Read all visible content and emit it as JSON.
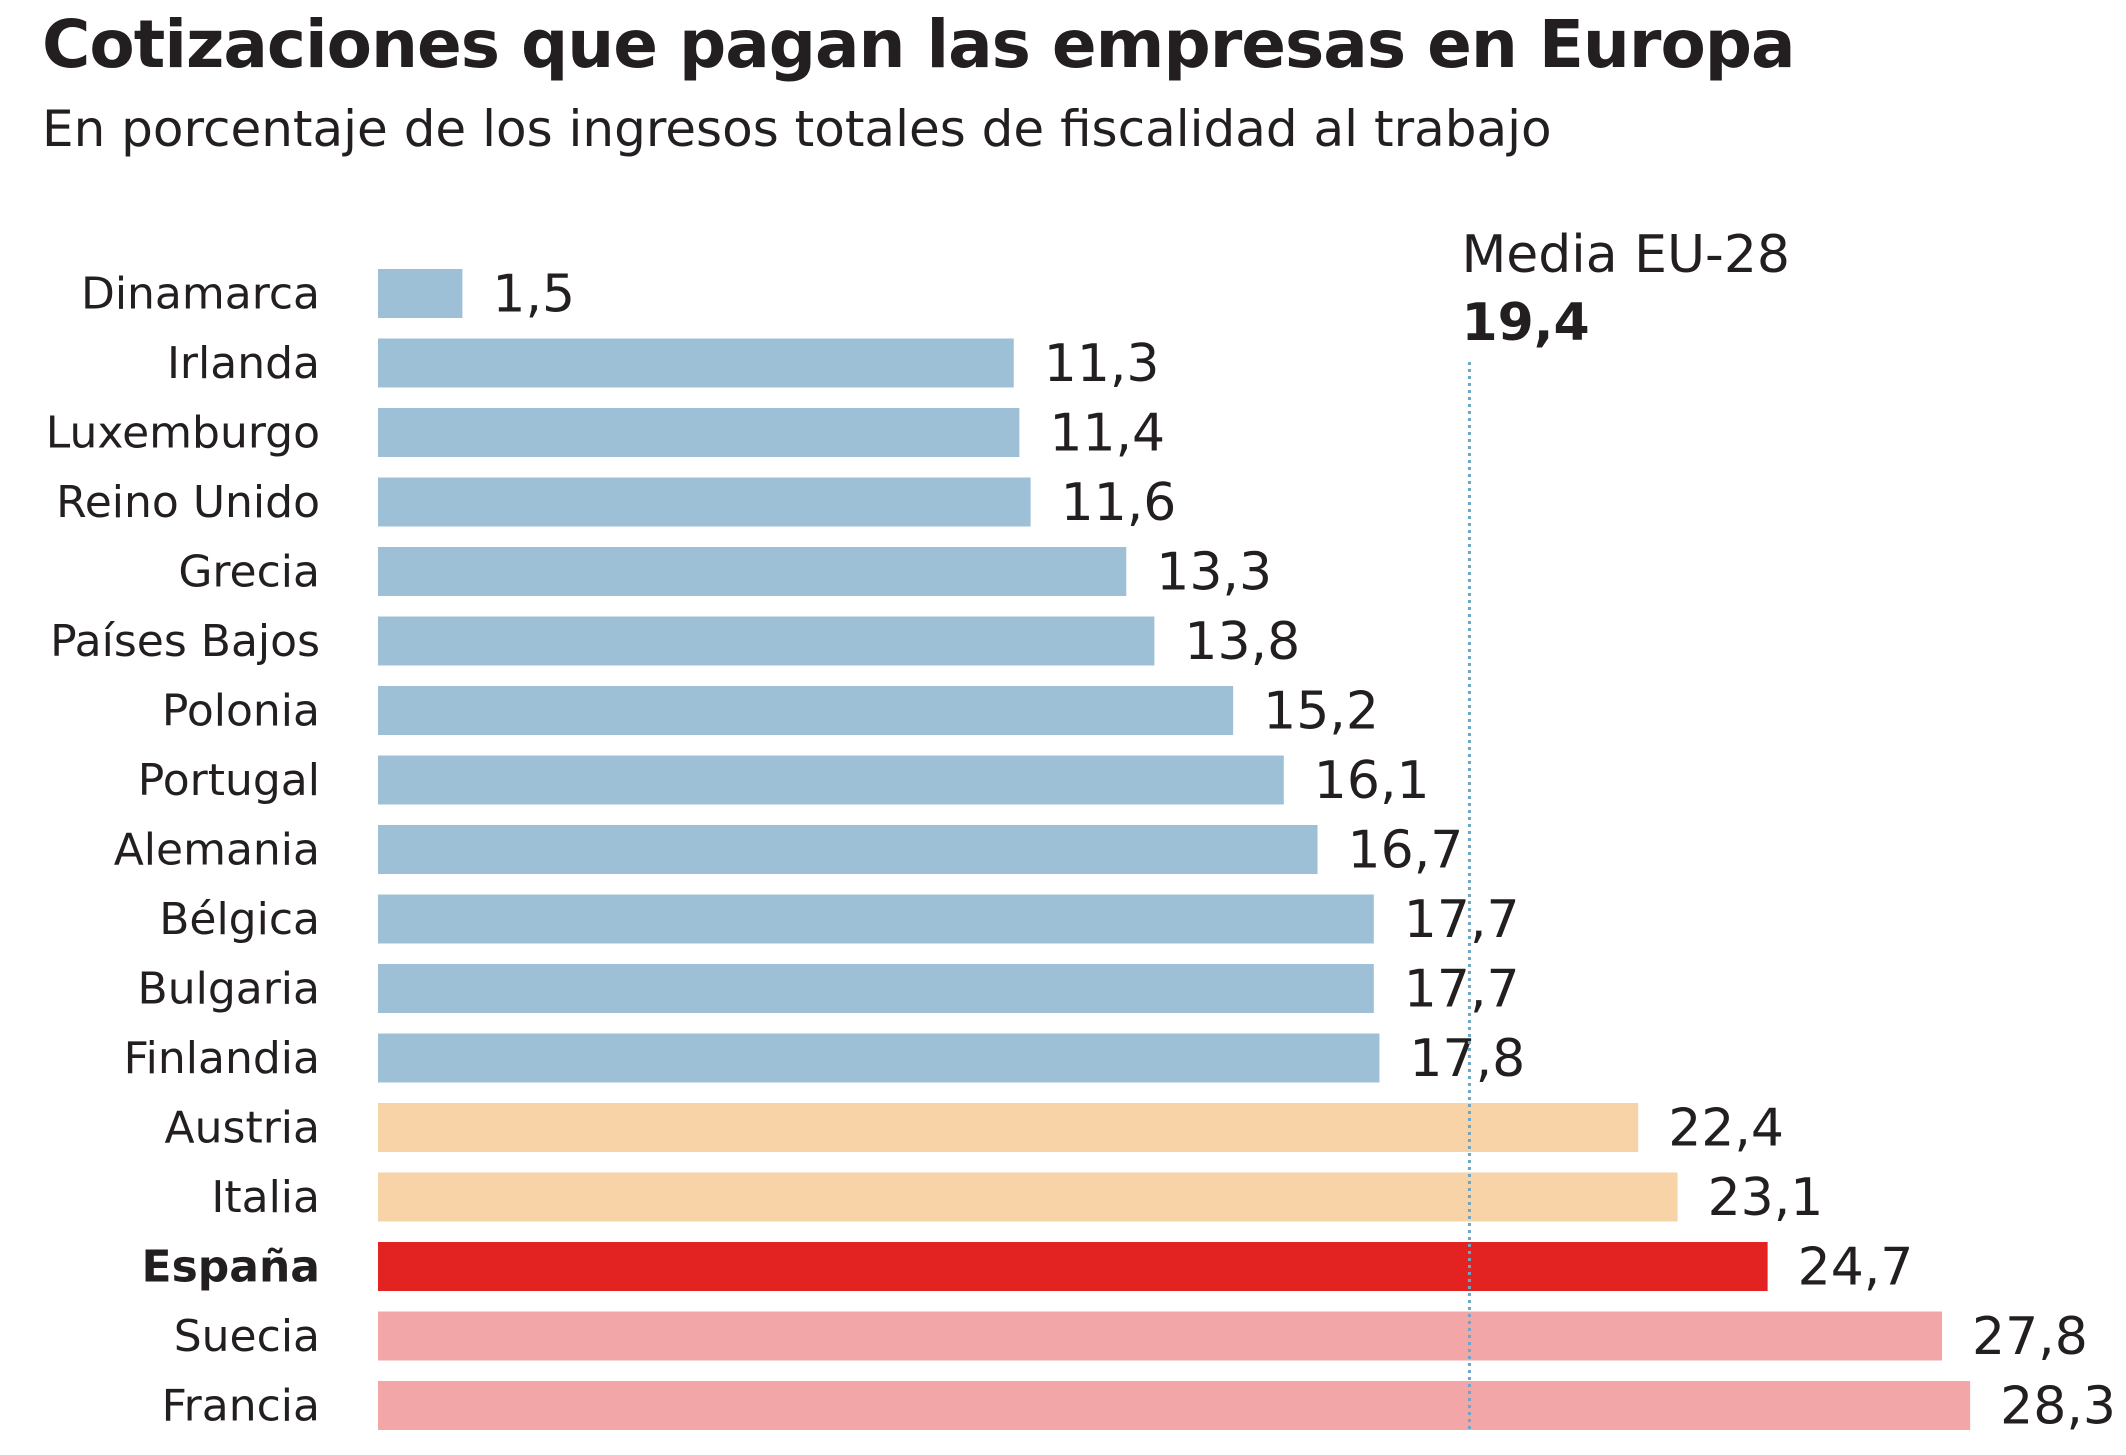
{
  "chart_data": {
    "type": "bar",
    "orientation": "horizontal",
    "title": "Cotizaciones que pagan las empresas en Europa",
    "subtitle": "En porcentaje de los ingresos totales de fiscalidad al trabajo",
    "categories": [
      "Dinamarca",
      "Irlanda",
      "Luxemburgo",
      "Reino Unido",
      "Grecia",
      "Países Bajos",
      "Polonia",
      "Portugal",
      "Alemania",
      "Bélgica",
      "Bulgaria",
      "Finlandia",
      "Austria",
      "Italia",
      "España",
      "Suecia",
      "Francia"
    ],
    "values": [
      1.5,
      11.3,
      11.4,
      11.6,
      13.3,
      13.8,
      15.2,
      16.1,
      16.7,
      17.7,
      17.7,
      17.8,
      22.4,
      23.1,
      24.7,
      27.8,
      28.3
    ],
    "value_labels": [
      "1,5",
      "11,3",
      "11,4",
      "11,6",
      "13,3",
      "13,8",
      "15,2",
      "16,1",
      "16,7",
      "17,7",
      "17,7",
      "17,8",
      "22,4",
      "23,1",
      "24,7",
      "27,8",
      "28,3"
    ],
    "highlight_category": "España",
    "reference_line": {
      "label": "Media EU-28",
      "value": 19.4,
      "value_label": "19,4",
      "style": "dotted",
      "color": "#6fa6c6"
    },
    "colors": {
      "below_average": "#9dc0d6",
      "above_average_moderate": "#f9d3a8",
      "highlight": "#e32222",
      "above_average_high": "#f3a6a8"
    },
    "bar_color_groups": [
      "below_average",
      "below_average",
      "below_average",
      "below_average",
      "below_average",
      "below_average",
      "below_average",
      "below_average",
      "below_average",
      "below_average",
      "below_average",
      "below_average",
      "above_average_moderate",
      "above_average_moderate",
      "highlight",
      "above_average_high",
      "above_average_high"
    ],
    "xlim": [
      0,
      28.3
    ],
    "grid": false,
    "legend": "none"
  }
}
